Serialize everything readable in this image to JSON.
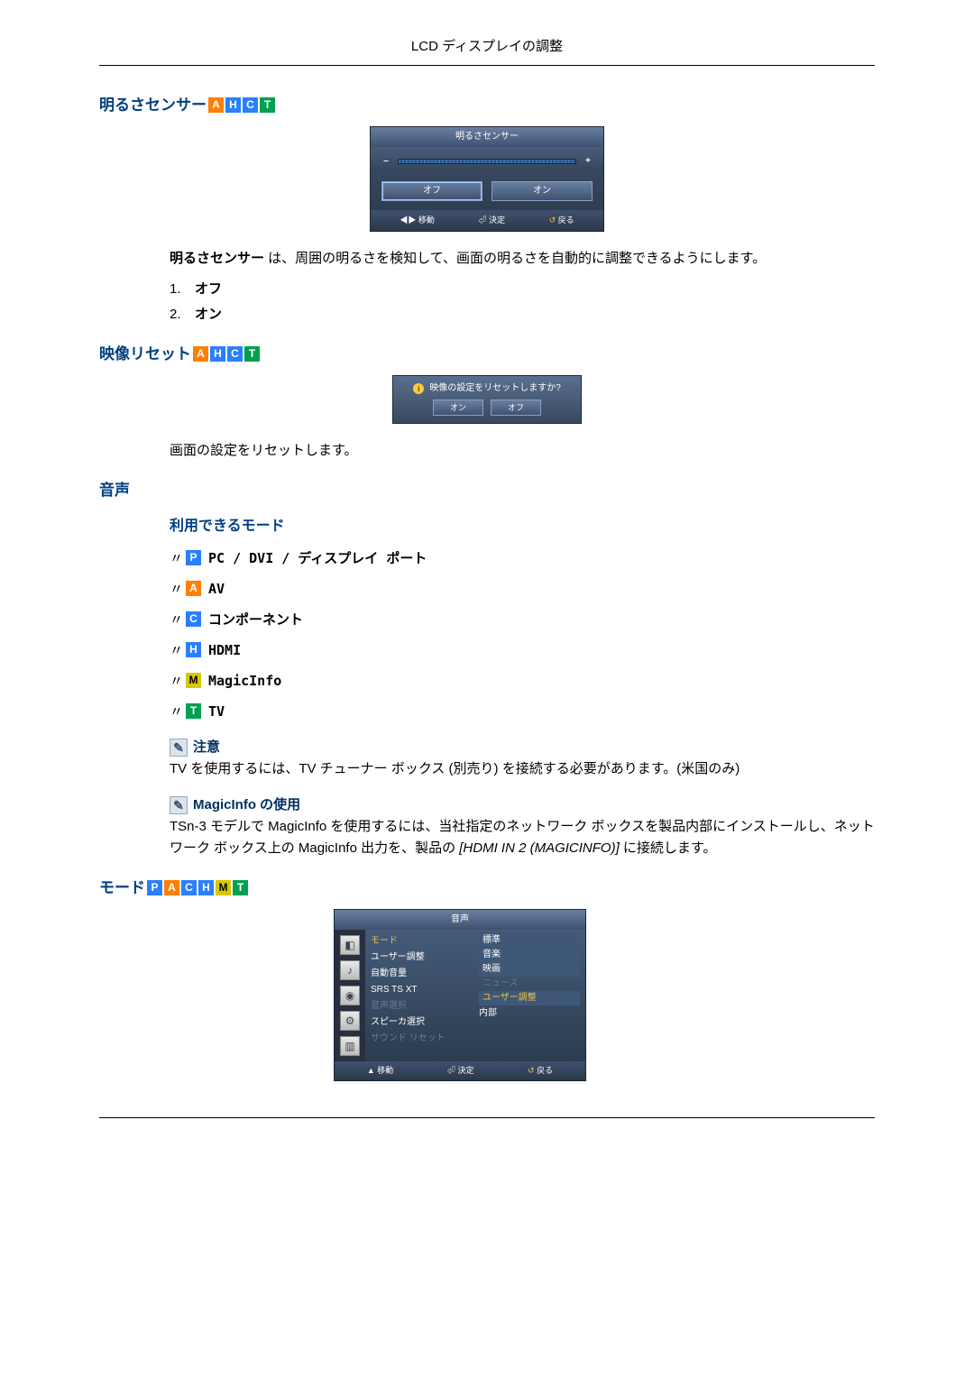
{
  "page_title": "LCD ディスプレイの調整",
  "badges": {
    "A": "A",
    "H": "H",
    "C": "C",
    "T": "T",
    "P": "P",
    "M": "M"
  },
  "section1": {
    "heading": "明るさセンサー",
    "osd": {
      "title": "明るさセンサー",
      "off": "オフ",
      "on": "オン",
      "move": "移動",
      "enter": "決定",
      "back": "戻る"
    },
    "desc1_strong": "明るさセンサー",
    "desc1_rest": " は、周囲の明るさを検知して、画面の明るさを自動的に調整できるようにします。",
    "items": {
      "n1": "1.",
      "v1": "オフ",
      "n2": "2.",
      "v2": "オン"
    }
  },
  "section2": {
    "heading": "映像リセット",
    "dialog": {
      "title": "映像の設定をリセットしますか?",
      "on": "オン",
      "off": "オフ"
    },
    "desc": "画面の設定をリセットします。"
  },
  "section3": {
    "heading": "音声",
    "sub": "利用できるモード",
    "rows": {
      "pc": "PC / DVI / ディスプレイ ポート",
      "av": "AV",
      "comp": "コンポーネント",
      "hdmi": "HDMI",
      "mi": "MagicInfo",
      "tv": "TV"
    },
    "note_label": "注意",
    "note_text": "TV を使用するには、TV チューナー ボックス (別売り) を接続する必要があります。(米国のみ)",
    "mi_use_label": "MagicInfo の使用",
    "mi_use_text_a": "TSn-3 モデルで MagicInfo を使用するには、当社指定のネットワーク ボックスを製品内部にインストールし、ネットワーク ボックス上の MagicInfo 出力を、製品の ",
    "mi_use_text_b": "[HDMI IN 2 (MAGICINFO)]",
    "mi_use_text_c": " に接続します。"
  },
  "section4": {
    "heading": "モード",
    "menu": {
      "title": "音声",
      "left": [
        "モード",
        "ユーザー調整",
        "自動音量",
        "SRS TS XT",
        "音声選択",
        "スピーカ選択",
        "サウンド リセット"
      ],
      "right": [
        "標準",
        "音楽",
        "映画",
        "ニュース",
        "ユーザー調整",
        "内部"
      ],
      "footer": {
        "move": "移動",
        "enter": "決定",
        "back": "戻る"
      }
    }
  },
  "colors": {
    "heading": "#004080",
    "badge_blue": "#2a7fff",
    "badge_orange": "#ff7f00",
    "badge_green": "#00a050",
    "badge_yellow": "#d8c800",
    "osd_bg_top": "#5a7090",
    "osd_bg_bottom": "#2a3848"
  }
}
